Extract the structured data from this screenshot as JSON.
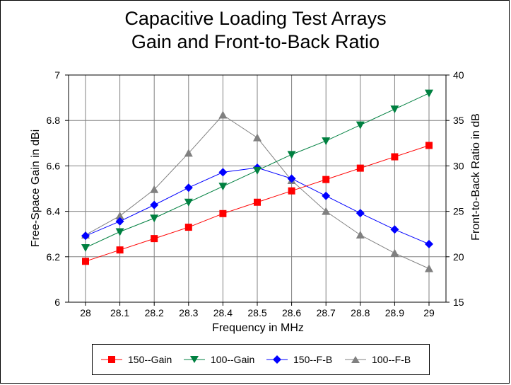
{
  "chart_data": {
    "type": "line",
    "title": "Capacitive Loading Test Arrays",
    "subtitle": "Gain and Front-to-Back Ratio",
    "xlabel": "Frequency in MHz",
    "ylabel": "Free-Space Gain in dBi",
    "y2label": "Front-to-Back Ratio in dB",
    "x": [
      28,
      28.1,
      28.2,
      28.3,
      28.4,
      28.5,
      28.6,
      28.7,
      28.8,
      28.9,
      29
    ],
    "xticks": [
      "28",
      "28.1",
      "28.2",
      "28.3",
      "28.4",
      "28.5",
      "28.6",
      "28.7",
      "28.8",
      "28.9",
      "29"
    ],
    "ylim": [
      6,
      7
    ],
    "yticks": [
      "6",
      "6.2",
      "6.4",
      "6.6",
      "6.8",
      "7"
    ],
    "y2lim": [
      15,
      40
    ],
    "y2ticks": [
      "15",
      "20",
      "25",
      "30",
      "35",
      "40"
    ],
    "grid": true,
    "legend_position": "bottom",
    "series": [
      {
        "name": "150--Gain",
        "axis": "left",
        "color": "#ff0000",
        "marker": "square",
        "values": [
          6.18,
          6.23,
          6.28,
          6.33,
          6.39,
          6.44,
          6.49,
          6.54,
          6.59,
          6.64,
          6.69
        ]
      },
      {
        "name": "100--Gain",
        "axis": "left",
        "color": "#008040",
        "marker": "triangle-down",
        "values": [
          6.24,
          6.31,
          6.37,
          6.44,
          6.51,
          6.58,
          6.65,
          6.71,
          6.78,
          6.85,
          6.92
        ]
      },
      {
        "name": "150--F-B",
        "axis": "right",
        "color": "#0000ff",
        "marker": "diamond",
        "values": [
          22.3,
          23.9,
          25.7,
          27.6,
          29.3,
          29.8,
          28.6,
          26.7,
          24.8,
          23.0,
          21.4
        ]
      },
      {
        "name": "100--F-B",
        "axis": "right",
        "color": "#808080",
        "marker": "triangle-up",
        "values": [
          22.4,
          24.5,
          27.4,
          31.4,
          35.6,
          33.1,
          28.4,
          25.0,
          22.4,
          20.4,
          18.7
        ]
      }
    ]
  }
}
